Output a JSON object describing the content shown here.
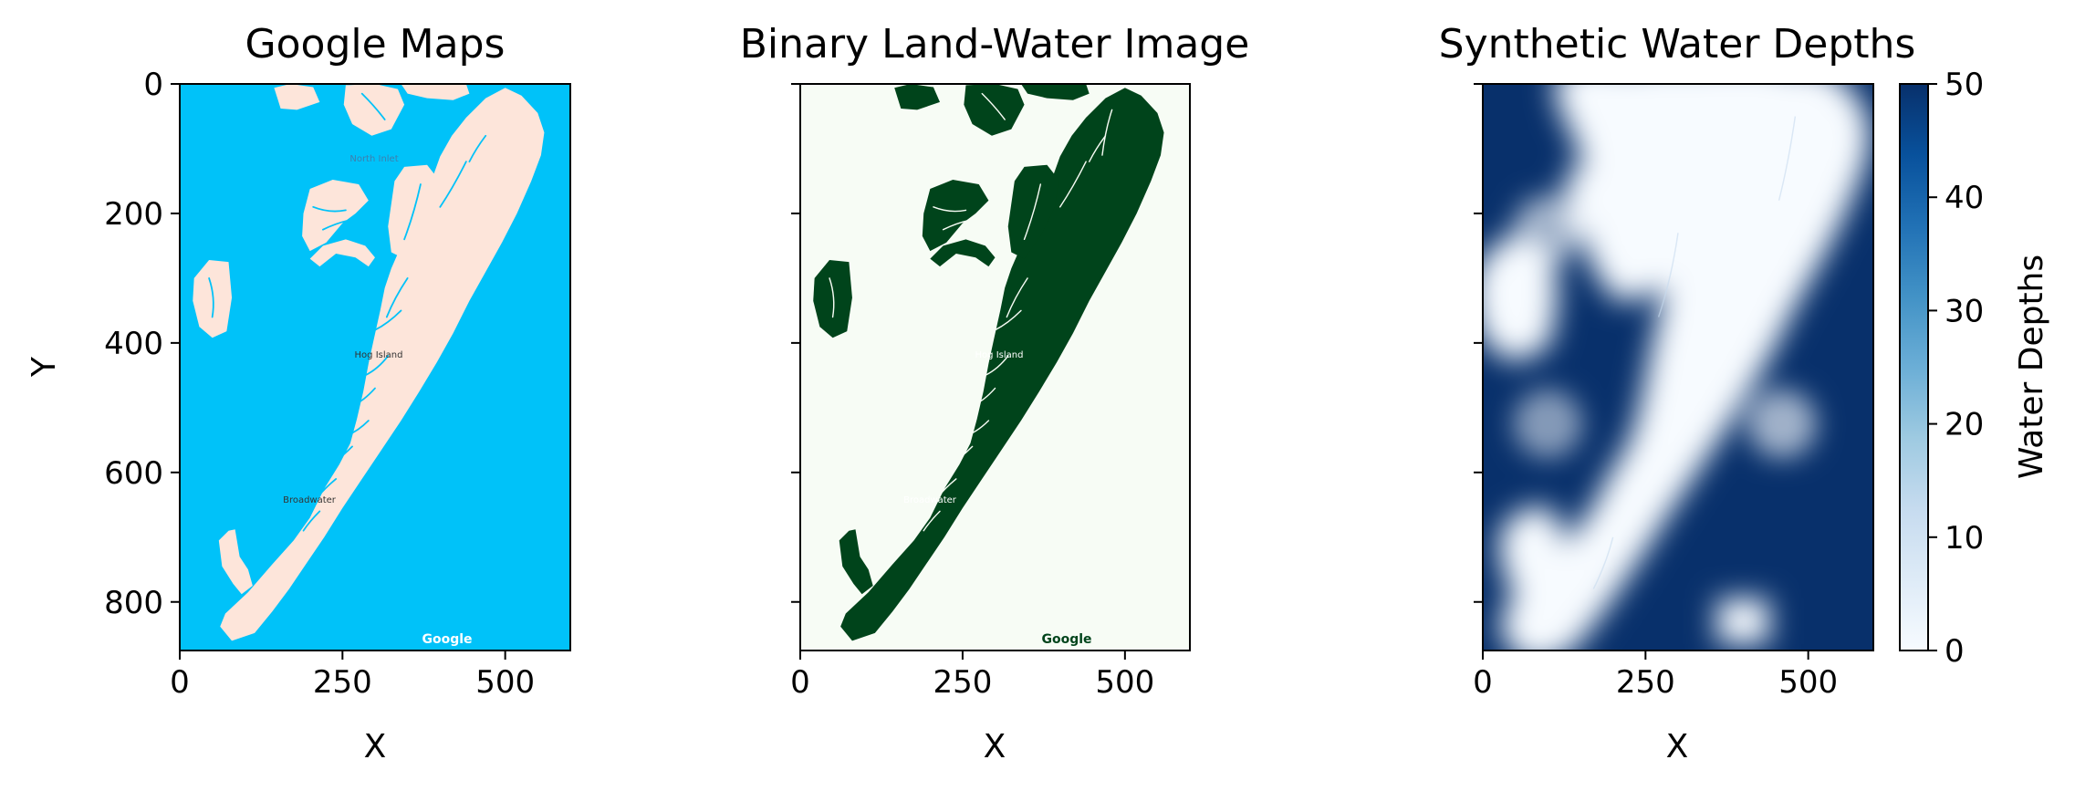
{
  "colors": {
    "google_water": "#00c2f9",
    "google_land": "#fde5da",
    "binary_land": "#00441b",
    "binary_water": "#f7fcf5",
    "depth_deep": "#08306b",
    "depth_shallow": "#f7fbff"
  },
  "chart_data": [
    {
      "type": "heatmap",
      "title": "Google Maps",
      "xlabel": "X",
      "ylabel": "Y",
      "xlim": [
        0,
        600
      ],
      "ylim": [
        875,
        0
      ],
      "xticks": [
        "0",
        "250",
        "500"
      ],
      "yticks": [
        "0",
        "200",
        "400",
        "600",
        "800"
      ],
      "map_labels": [
        "North Inlet",
        "Hog Island",
        "Broadwater"
      ],
      "watermark": "Google"
    },
    {
      "type": "heatmap",
      "title": "Binary Land-Water Image",
      "xlabel": "X",
      "xlim": [
        0,
        600
      ],
      "ylim": [
        875,
        0
      ],
      "xticks": [
        "0",
        "250",
        "500"
      ],
      "map_labels": [
        "Hog Island",
        "Broadwater"
      ],
      "watermark": "Google"
    },
    {
      "type": "heatmap",
      "title": "Synthetic Water Depths",
      "xlabel": "X",
      "xlim": [
        0,
        600
      ],
      "ylim": [
        875,
        0
      ],
      "xticks": [
        "0",
        "250",
        "500"
      ],
      "colorbar": {
        "label": "Water Depths",
        "range": [
          0,
          50
        ],
        "ticks": [
          "0",
          "10",
          "20",
          "30",
          "40",
          "50"
        ],
        "colormap": "Blues"
      }
    }
  ]
}
